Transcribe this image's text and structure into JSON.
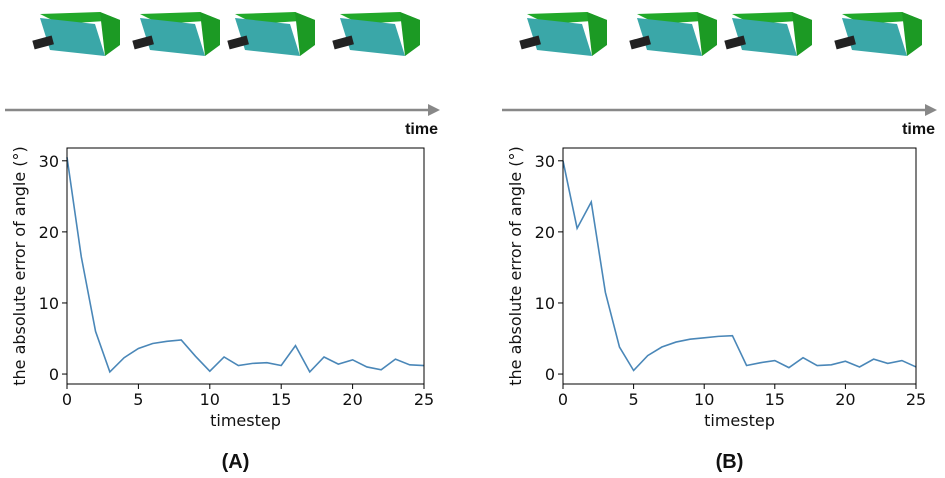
{
  "chart_data": [
    {
      "type": "line",
      "annotation": "time",
      "xlabel": "timestep",
      "ylabel": "the absolute error of angle (°)",
      "caption": "(A)",
      "x": [
        0,
        1,
        2,
        3,
        4,
        5,
        6,
        7,
        8,
        9,
        10,
        11,
        12,
        13,
        14,
        15,
        16,
        17,
        18,
        19,
        20,
        21,
        22,
        23,
        24,
        25
      ],
      "series": [
        {
          "color": "#4a87b8",
          "values": [
            30.5,
            16.5,
            6,
            0.3,
            2.3,
            3.6,
            4.3,
            4.6,
            4.8,
            2.5,
            0.4,
            2.4,
            1.2,
            1.5,
            1.6,
            1.2,
            4,
            0.3,
            2.4,
            1.4,
            2,
            1,
            0.6,
            2.1,
            1.3,
            1.2
          ]
        }
      ],
      "xlim": [
        0,
        25
      ],
      "ylim": [
        -1.4,
        31.8
      ],
      "xticks": [
        0,
        5,
        10,
        15,
        20,
        25
      ],
      "yticks": [
        0,
        10,
        20,
        30
      ]
    },
    {
      "type": "line",
      "annotation": "time",
      "xlabel": "timestep",
      "ylabel": "the absolute error of angle (°)",
      "caption": "(B)",
      "x": [
        0,
        1,
        2,
        3,
        4,
        5,
        6,
        7,
        8,
        9,
        10,
        11,
        12,
        13,
        14,
        15,
        16,
        17,
        18,
        19,
        20,
        21,
        22,
        23,
        24,
        25
      ],
      "series": [
        {
          "color": "#4a87b8",
          "values": [
            30,
            20.5,
            24.2,
            11.5,
            3.8,
            0.5,
            2.6,
            3.8,
            4.5,
            4.9,
            5.1,
            5.3,
            5.4,
            1.2,
            1.6,
            1.9,
            0.9,
            2.3,
            1.2,
            1.3,
            1.8,
            1,
            2.1,
            1.5,
            1.9,
            1
          ]
        }
      ],
      "xlim": [
        0,
        25
      ],
      "ylim": [
        -1.4,
        31.8
      ],
      "xticks": [
        0,
        5,
        10,
        15,
        20,
        25
      ],
      "yticks": [
        0,
        10,
        20,
        30
      ]
    }
  ]
}
